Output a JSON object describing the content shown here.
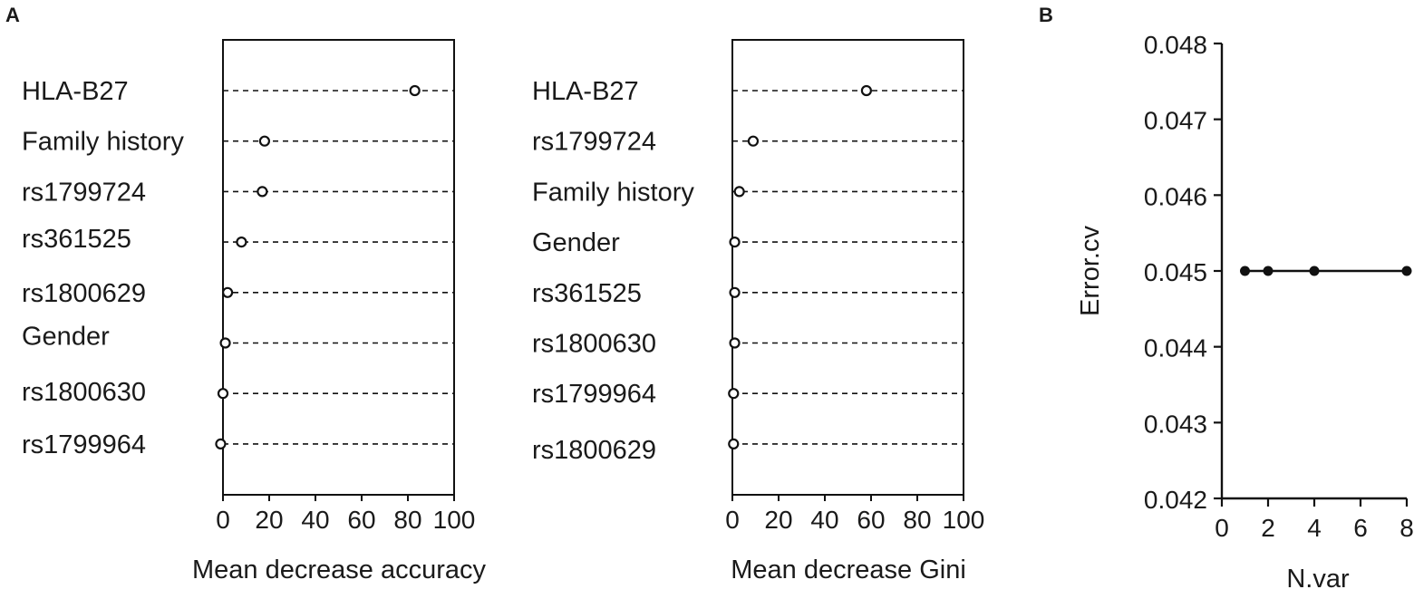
{
  "panels": {
    "a": "A",
    "b": "B"
  },
  "chart_data": [
    {
      "type": "scatter",
      "style": "dotplot",
      "title": "",
      "xlabel": "Mean decrease accuracy",
      "ylabel": "",
      "xlim": [
        0,
        100
      ],
      "xticks": [
        "0",
        "20",
        "40",
        "60",
        "80",
        "100"
      ],
      "categories": [
        "HLA-B27",
        "Family history",
        "rs1799724",
        "rs361525",
        "rs1800629",
        "Gender",
        "rs1800630",
        "rs1799964"
      ],
      "values": [
        83,
        18,
        17,
        8,
        2,
        1,
        0,
        -1
      ],
      "marker": "open-circle",
      "grid": false
    },
    {
      "type": "scatter",
      "style": "dotplot",
      "title": "",
      "xlabel": "Mean decrease Gini",
      "ylabel": "",
      "xlim": [
        0,
        100
      ],
      "xticks": [
        "0",
        "20",
        "40",
        "60",
        "80",
        "100"
      ],
      "categories": [
        "HLA-B27",
        "rs1799724",
        "Family history",
        "Gender",
        "rs361525",
        "rs1800630",
        "rs1799964",
        "rs1800629"
      ],
      "values": [
        58,
        9,
        3,
        1,
        1,
        1,
        0.5,
        0.5
      ],
      "marker": "open-circle",
      "grid": false
    },
    {
      "type": "line",
      "title": "",
      "xlabel": "N.var",
      "ylabel": "Error.cv",
      "xlim": [
        0,
        8
      ],
      "ylim": [
        0.042,
        0.048
      ],
      "xticks": [
        "0",
        "2",
        "4",
        "6",
        "8"
      ],
      "yticks": [
        "0.042",
        "0.043",
        "0.044",
        "0.045",
        "0.046",
        "0.047",
        "0.048"
      ],
      "x": [
        1,
        2,
        4,
        8
      ],
      "y": [
        0.045,
        0.045,
        0.045,
        0.045
      ],
      "marker": "filled-circle",
      "grid": false
    }
  ]
}
